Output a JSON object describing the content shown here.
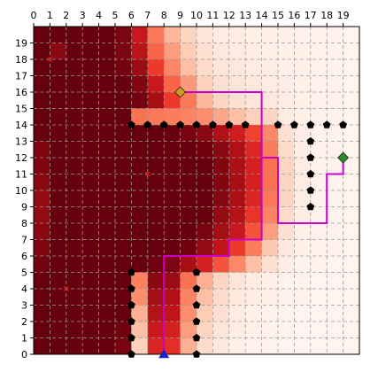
{
  "chart_data": {
    "type": "heatmap",
    "title": "",
    "xlabel": "",
    "ylabel": "",
    "xlim": [
      0,
      20
    ],
    "ylim": [
      0,
      20
    ],
    "x_ticks": [
      0,
      1,
      2,
      3,
      4,
      5,
      6,
      7,
      8,
      9,
      10,
      11,
      12,
      13,
      14,
      15,
      16,
      17,
      18,
      19
    ],
    "y_ticks": [
      0,
      1,
      2,
      3,
      4,
      5,
      6,
      7,
      8,
      9,
      10,
      11,
      12,
      13,
      14,
      15,
      16,
      17,
      18,
      19
    ],
    "grid": "dashed",
    "colormap": [
      "#fff5f0",
      "#fdd0ba",
      "#fc9272",
      "#fb6a4a",
      "#ef3b2c",
      "#cb181d",
      "#a50f15",
      "#67000d"
    ],
    "intensity_rows_top_to_bottom": [
      [
        1.0,
        1.0,
        1.0,
        1.0,
        1.0,
        0.95,
        0.72,
        0.38,
        0.2,
        0.12,
        0.06,
        0.04,
        0.03,
        0.02,
        0.02,
        0.02,
        0.01,
        0.01,
        0.01,
        0.0
      ],
      [
        1.0,
        0.92,
        1.0,
        1.0,
        1.0,
        0.95,
        0.78,
        0.45,
        0.26,
        0.15,
        0.08,
        0.05,
        0.04,
        0.03,
        0.02,
        0.02,
        0.02,
        0.01,
        0.01,
        0.0
      ],
      [
        1.0,
        1.0,
        1.0,
        1.0,
        1.0,
        0.97,
        0.88,
        0.58,
        0.33,
        0.18,
        0.1,
        0.06,
        0.05,
        0.04,
        0.03,
        0.02,
        0.02,
        0.01,
        0.01,
        0.0
      ],
      [
        1.0,
        1.0,
        1.0,
        1.0,
        1.0,
        1.0,
        0.94,
        0.72,
        0.45,
        0.27,
        0.14,
        0.08,
        0.06,
        0.05,
        0.04,
        0.03,
        0.02,
        0.01,
        0.01,
        0.0
      ],
      [
        1.0,
        1.0,
        1.0,
        1.0,
        1.0,
        1.0,
        0.97,
        0.85,
        0.58,
        0.38,
        0.2,
        0.12,
        0.08,
        0.06,
        0.05,
        0.03,
        0.02,
        0.01,
        0.01,
        0.0
      ],
      [
        1.0,
        1.0,
        1.0,
        1.0,
        1.0,
        1.0,
        0.4,
        0.38,
        0.36,
        0.34,
        0.3,
        0.24,
        0.18,
        0.14,
        0.12,
        0.04,
        0.02,
        0.01,
        0.01,
        0.0
      ],
      [
        1.0,
        1.0,
        1.0,
        1.0,
        1.0,
        1.0,
        1.0,
        1.0,
        1.0,
        0.96,
        0.92,
        0.82,
        0.7,
        0.55,
        0.32,
        0.08,
        0.03,
        0.01,
        0.01,
        0.0
      ],
      [
        0.95,
        1.0,
        1.0,
        1.0,
        1.0,
        1.0,
        1.0,
        1.0,
        1.0,
        1.0,
        0.98,
        0.92,
        0.82,
        0.65,
        0.36,
        0.1,
        0.03,
        0.01,
        0.01,
        0.0
      ],
      [
        0.95,
        1.0,
        1.0,
        1.0,
        1.0,
        1.0,
        1.0,
        1.0,
        1.0,
        1.0,
        1.0,
        0.94,
        0.84,
        0.68,
        0.4,
        0.12,
        0.04,
        0.01,
        0.01,
        0.0
      ],
      [
        0.92,
        1.0,
        1.0,
        1.0,
        1.0,
        1.0,
        1.0,
        1.0,
        1.0,
        1.0,
        1.0,
        0.94,
        0.85,
        0.68,
        0.4,
        0.12,
        0.04,
        0.01,
        0.01,
        0.0
      ],
      [
        0.9,
        1.0,
        1.0,
        1.0,
        1.0,
        1.0,
        1.0,
        1.0,
        1.0,
        1.0,
        1.0,
        0.93,
        0.84,
        0.66,
        0.38,
        0.12,
        0.04,
        0.01,
        0.01,
        0.0
      ],
      [
        0.9,
        1.0,
        1.0,
        1.0,
        1.0,
        1.0,
        1.0,
        1.0,
        1.0,
        1.0,
        1.0,
        0.9,
        0.8,
        0.6,
        0.34,
        0.1,
        0.03,
        0.01,
        0.01,
        0.0
      ],
      [
        0.92,
        1.0,
        1.0,
        1.0,
        1.0,
        1.0,
        1.0,
        1.0,
        1.0,
        1.0,
        0.96,
        0.86,
        0.72,
        0.5,
        0.26,
        0.08,
        0.02,
        0.01,
        0.01,
        0.0
      ],
      [
        0.95,
        1.0,
        1.0,
        1.0,
        1.0,
        1.0,
        1.0,
        1.0,
        1.0,
        0.98,
        0.9,
        0.76,
        0.58,
        0.36,
        0.16,
        0.05,
        0.02,
        0.01,
        0.01,
        0.0
      ],
      [
        0.97,
        1.0,
        1.0,
        1.0,
        1.0,
        1.0,
        1.0,
        0.98,
        0.95,
        0.85,
        0.68,
        0.5,
        0.32,
        0.18,
        0.08,
        0.03,
        0.01,
        0.01,
        0.0,
        0.0
      ],
      [
        1.0,
        1.0,
        1.0,
        1.0,
        1.0,
        1.0,
        0.35,
        0.92,
        0.88,
        0.4,
        0.22,
        0.12,
        0.06,
        0.04,
        0.02,
        0.01,
        0.01,
        0.0,
        0.0,
        0.0
      ],
      [
        1.0,
        1.0,
        1.0,
        1.0,
        1.0,
        1.0,
        0.3,
        0.86,
        0.82,
        0.34,
        0.18,
        0.1,
        0.05,
        0.03,
        0.02,
        0.01,
        0.01,
        0.0,
        0.0,
        0.0
      ],
      [
        1.0,
        1.0,
        1.0,
        1.0,
        1.0,
        1.0,
        0.22,
        0.8,
        0.76,
        0.3,
        0.15,
        0.08,
        0.04,
        0.02,
        0.01,
        0.01,
        0.0,
        0.0,
        0.0,
        0.0
      ],
      [
        1.0,
        1.0,
        1.0,
        1.0,
        1.0,
        0.98,
        0.18,
        0.72,
        0.68,
        0.26,
        0.12,
        0.06,
        0.03,
        0.02,
        0.01,
        0.01,
        0.0,
        0.0,
        0.0,
        0.0
      ],
      [
        1.0,
        1.0,
        1.0,
        1.0,
        1.0,
        0.96,
        0.14,
        0.66,
        0.62,
        0.22,
        0.1,
        0.05,
        0.02,
        0.01,
        0.01,
        0.0,
        0.0,
        0.0,
        0.0,
        0.0
      ]
    ],
    "obstacle_markers": {
      "symbol": "pentagon",
      "color": "#000000",
      "points": [
        [
          6,
          14
        ],
        [
          7,
          14
        ],
        [
          8,
          14
        ],
        [
          9,
          14
        ],
        [
          10,
          14
        ],
        [
          11,
          14
        ],
        [
          12,
          14
        ],
        [
          13,
          14
        ],
        [
          15,
          14
        ],
        [
          16,
          14
        ],
        [
          17,
          14
        ],
        [
          18,
          14
        ],
        [
          19,
          14
        ],
        [
          17,
          13
        ],
        [
          17,
          12
        ],
        [
          17,
          11
        ],
        [
          17,
          10
        ],
        [
          17,
          9
        ],
        [
          6,
          5
        ],
        [
          6,
          4
        ],
        [
          6,
          3
        ],
        [
          6,
          2
        ],
        [
          6,
          1
        ],
        [
          6,
          0
        ],
        [
          10,
          5
        ],
        [
          10,
          4
        ],
        [
          10,
          3
        ],
        [
          10,
          2
        ],
        [
          10,
          1
        ],
        [
          10,
          0
        ]
      ]
    },
    "small_markers": {
      "symbol": "x",
      "color": "#e31a1c",
      "points": [
        [
          1,
          18
        ],
        [
          7,
          11
        ],
        [
          2,
          4
        ]
      ]
    },
    "path": {
      "color": "#cc00cc",
      "points": [
        [
          8,
          0
        ],
        [
          8,
          6
        ],
        [
          12,
          6
        ],
        [
          12,
          7
        ],
        [
          14,
          7
        ],
        [
          14,
          16
        ],
        [
          9,
          16
        ]
      ]
    },
    "path2": {
      "color": "#cc00cc",
      "points": [
        [
          14,
          12
        ],
        [
          15,
          12
        ],
        [
          15,
          8
        ],
        [
          18,
          8
        ],
        [
          18,
          11
        ],
        [
          19,
          11
        ],
        [
          19,
          12
        ]
      ]
    },
    "start_marker": {
      "symbol": "triangle",
      "color": "#1f1fcc",
      "point": [
        8,
        0
      ]
    },
    "goal_marker": {
      "symbol": "diamond",
      "color": "#c8a020",
      "point": [
        9,
        16
      ]
    },
    "goal2_marker": {
      "symbol": "diamond",
      "color": "#2e8b2e",
      "point": [
        19,
        12
      ]
    }
  }
}
